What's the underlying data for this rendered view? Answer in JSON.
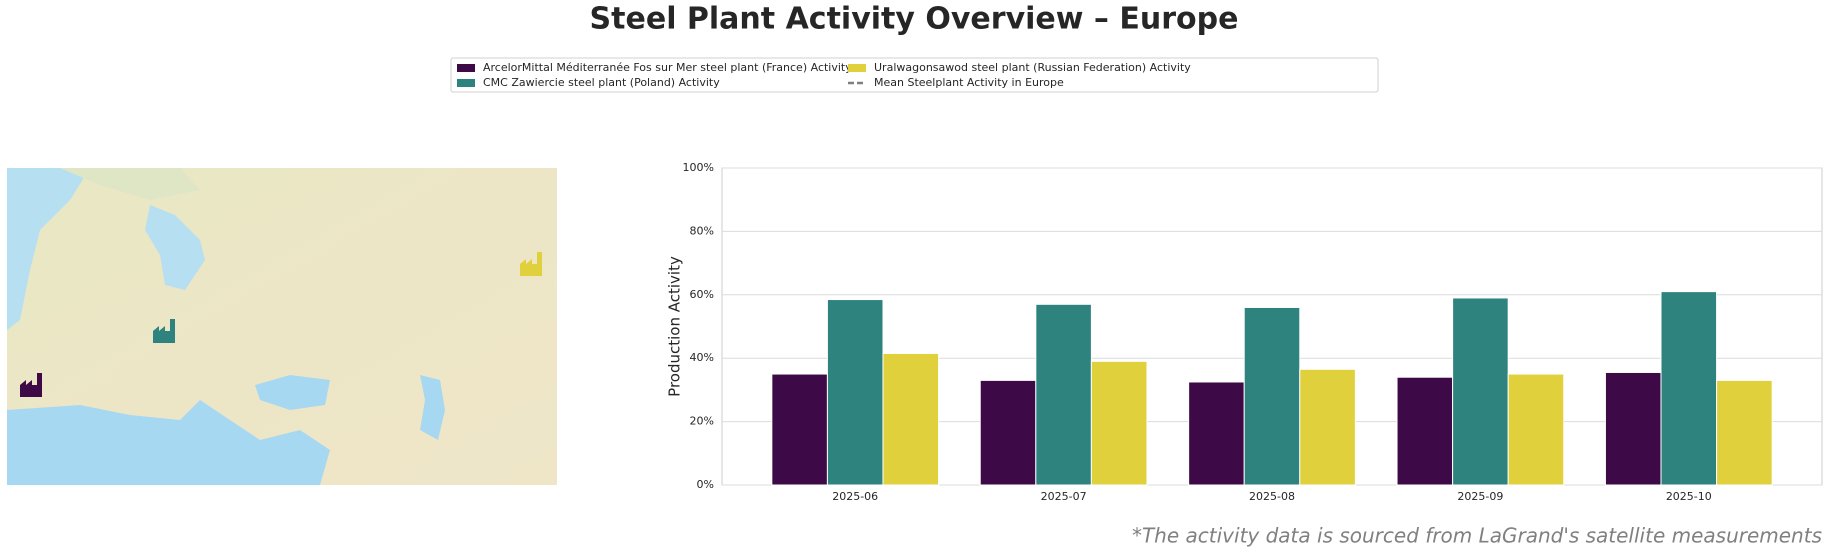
{
  "chart_data": {
    "type": "bar",
    "title": "Steel Plant Activity Overview – Europe",
    "ylabel": "Production Activity",
    "footnote": "*The activity data is sourced from LaGrand's satellite measurements",
    "categories": [
      "2025-06",
      "2025-07",
      "2025-08",
      "2025-09",
      "2025-10"
    ],
    "series": [
      {
        "name": "ArcelorMittal Méditerranée Fos sur Mer steel plant (France) Activity",
        "color": "#3d0a47",
        "values": [
          35,
          33,
          32.5,
          34,
          35.5
        ]
      },
      {
        "name": "CMC Zawiercie steel plant (Poland) Activity",
        "color": "#2e837e",
        "values": [
          58.5,
          57,
          56,
          59,
          61
        ]
      },
      {
        "name": "Uralwagonsawod steel plant (Russian Federation) Activity",
        "color": "#e0d03c",
        "values": [
          41.5,
          39,
          36.5,
          35,
          33
        ]
      }
    ],
    "reference_line": {
      "name": "Mean Steelplant Activity in Europe",
      "color": "#808080",
      "style": "dashed"
    },
    "ylim": [
      0,
      100
    ],
    "yticks": [
      {
        "value": 0,
        "label": "0%"
      },
      {
        "value": 20,
        "label": "20%"
      },
      {
        "value": 40,
        "label": "40%"
      },
      {
        "value": 60,
        "label": "60%"
      },
      {
        "value": 80,
        "label": "80%"
      },
      {
        "value": 100,
        "label": "100%"
      }
    ],
    "grid": true
  }
}
